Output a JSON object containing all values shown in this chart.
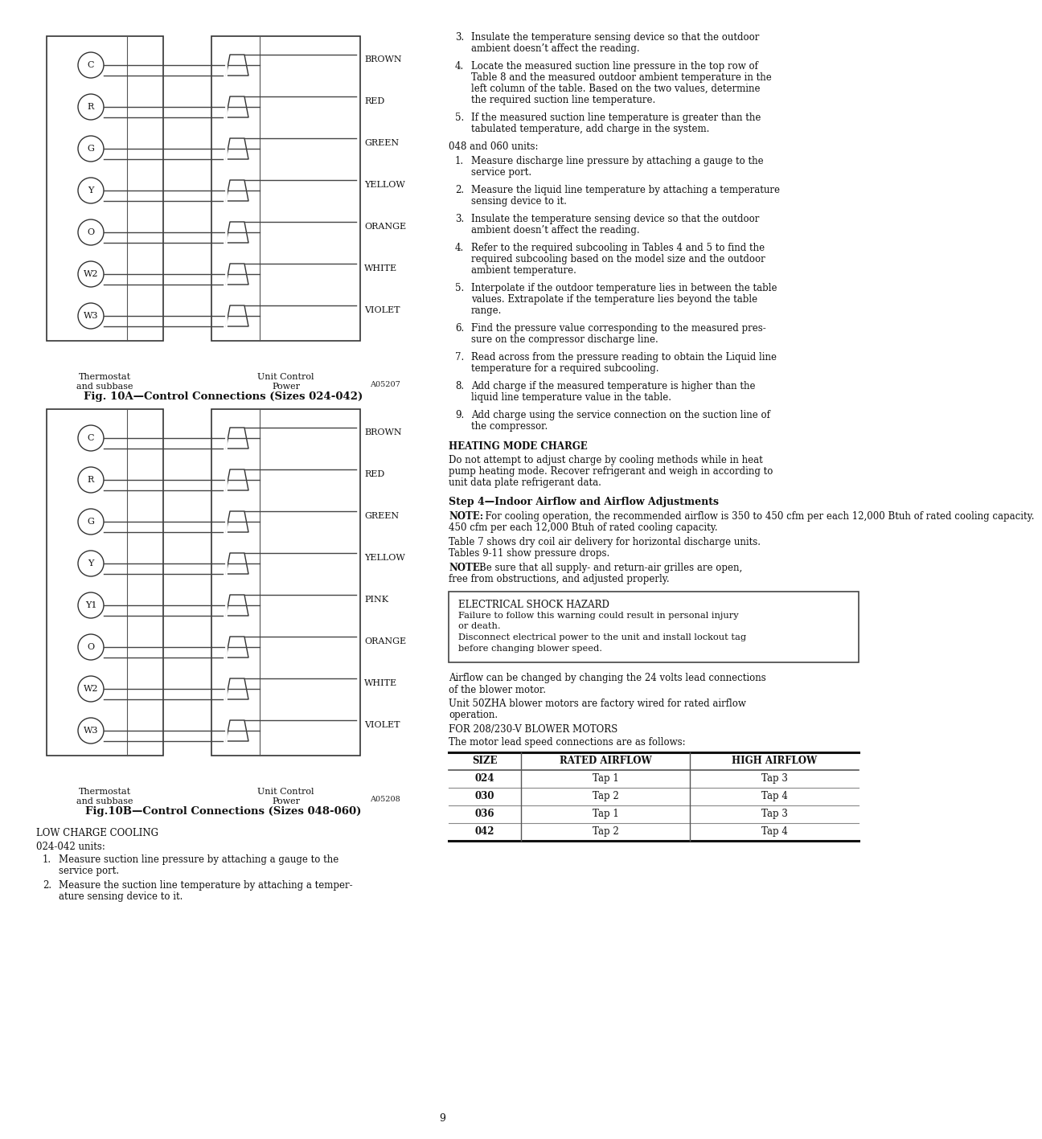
{
  "page_bg": "#ffffff",
  "fig10a_title": "Fig. 10A—Control Connections (Sizes 024-042)",
  "fig10a_code": "A05207",
  "fig10b_title": "Fig.10B—Control Connections (Sizes 048-060)",
  "fig10b_code": "A05208",
  "fig10a_circles": [
    "C",
    "R",
    "G",
    "Y",
    "O",
    "W2",
    "W3"
  ],
  "fig10a_wires": [
    "BROWN",
    "RED",
    "GREEN",
    "YELLOW",
    "ORANGE",
    "WHITE",
    "VIOLET"
  ],
  "fig10b_circles": [
    "C",
    "R",
    "G",
    "Y",
    "Y1",
    "O",
    "W2",
    "W3"
  ],
  "fig10b_wires": [
    "BROWN",
    "RED",
    "GREEN",
    "YELLOW",
    "PINK",
    "ORANGE",
    "WHITE",
    "VIOLET"
  ],
  "thermostat_label": "Thermostat\nand subbase",
  "unit_control_label": "Unit Control\nPower",
  "section_heading": "Step 4—Indoor Airflow and Airflow Adjustments",
  "note1_bold": "NOTE:",
  "note1_rest": "  For cooling operation, the recommended airflow is 350 to 450 cfm per each 12,000 Btuh of rated cooling capacity.",
  "table7_text": "Table 7 shows dry coil air delivery for horizontal discharge units. Tables 9-11 show pressure drops.",
  "note2_bold": "NOTE:",
  "note2_rest": "  Be sure that all supply- and return-air grilles are open, free from obstructions, and adjusted properly.",
  "hazard_title": "ELECTRICAL SHOCK HAZARD",
  "hazard_line1": "Failure to follow this warning could result in personal injury",
  "hazard_line2": "or death.",
  "hazard_line3": "Disconnect electrical power to the unit and install lockout tag",
  "hazard_line4": "before changing blower speed.",
  "airflow_text1a": "Airflow can be changed by changing the 24 volts lead connections",
  "airflow_text1b": "of the blower motor.",
  "airflow_text2a": "Unit 50ZHA blower motors are factory wired for rated airflow",
  "airflow_text2b": "operation.",
  "for_motors": "FOR 208/230-V BLOWER MOTORS",
  "motor_text": "The motor lead speed connections are as follows:",
  "table_headers": [
    "SIZE",
    "RATED AIRFLOW",
    "HIGH AIRFLOW"
  ],
  "table_data": [
    [
      "024",
      "Tap 1",
      "Tap 3"
    ],
    [
      "030",
      "Tap 2",
      "Tap 4"
    ],
    [
      "036",
      "Tap 1",
      "Tap 3"
    ],
    [
      "042",
      "Tap 2",
      "Tap 4"
    ]
  ],
  "low_charge_heading": "LOW CHARGE COOLING",
  "section_024_042": "024-042 units:",
  "item1a": "Measure suction line pressure by attaching a gauge to the",
  "item1b": "service port.",
  "item2a": "Measure the suction line temperature by attaching a temper-",
  "item2b": "ature sensing device to it.",
  "right_item3_num": "3.",
  "right_item3a": "Insulate the temperature sensing device so that the outdoor",
  "right_item3b": "ambient doesn’t affect the reading.",
  "right_item4_num": "4.",
  "right_item4a": "Locate the measured suction line pressure in the top row of",
  "right_item4b": "Table 8 and the measured outdoor ambient temperature in the",
  "right_item4c": "left column of the table. Based on the two values, determine",
  "right_item4d": "the required suction line temperature.",
  "right_item5_num": "5.",
  "right_item5a": "If the measured suction line temperature is greater than the",
  "right_item5b": "tabulated temperature, add charge in the system.",
  "section_048_060": "048 and 060 units:",
  "r_items_048": [
    {
      "num": "1.",
      "lines": [
        "Measure discharge line pressure by attaching a gauge to the",
        "service port."
      ]
    },
    {
      "num": "2.",
      "lines": [
        "Measure the liquid line temperature by attaching a temperature",
        "sensing device to it."
      ]
    },
    {
      "num": "3.",
      "lines": [
        "Insulate the temperature sensing device so that the outdoor",
        "ambient doesn’t affect the reading."
      ]
    },
    {
      "num": "4.",
      "lines": [
        "Refer to the required subcooling in Tables 4 and 5 to find the",
        "required subcooling based on the model size and the outdoor",
        "ambient temperature."
      ]
    },
    {
      "num": "5.",
      "lines": [
        "Interpolate if the outdoor temperature lies in between the table",
        "values. Extrapolate if the temperature lies beyond the table",
        "range."
      ]
    },
    {
      "num": "6.",
      "lines": [
        "Find the pressure value corresponding to the measured pres-",
        "sure on the compressor discharge line."
      ]
    },
    {
      "num": "7.",
      "lines": [
        "Read across from the pressure reading to obtain the Liquid line",
        "temperature for a required subcooling."
      ]
    },
    {
      "num": "8.",
      "lines": [
        "Add charge if the measured temperature is higher than the",
        "liquid line temperature value in the table."
      ]
    },
    {
      "num": "9.",
      "lines": [
        "Add charge using the service connection on the suction line of",
        "the compressor."
      ]
    }
  ],
  "heating_mode_heading": "HEATING MODE CHARGE",
  "hm_line1": "Do not attempt to adjust charge by cooling methods while in heat",
  "hm_line2": "pump heating mode. Recover refrigerant and weigh in according to",
  "hm_line3": "unit data plate refrigerant data.",
  "page_number": "9"
}
